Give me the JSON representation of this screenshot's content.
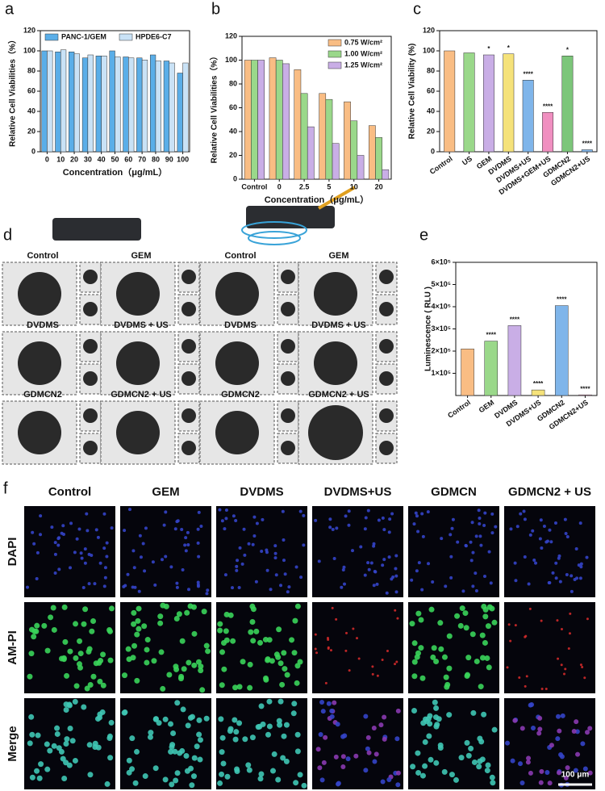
{
  "chart_data": [
    {
      "type": "bar",
      "label": "a",
      "ylabel": "Relative Cell Viabilities（%）",
      "xlabel": "Concentration（μg/mL）",
      "categories": [
        "0",
        "10",
        "20",
        "30",
        "40",
        "50",
        "60",
        "70",
        "80",
        "90",
        "100"
      ],
      "series": [
        {
          "name": "PANC-1/GEM",
          "color": "#5aaee8",
          "values": [
            100,
            99,
            99,
            93,
            95,
            100,
            94,
            93,
            96,
            90,
            78
          ]
        },
        {
          "name": "HPDE6-C7",
          "color": "#c9e2f6",
          "values": [
            100,
            101,
            97,
            96,
            95,
            94,
            93,
            91,
            90,
            88,
            88
          ]
        }
      ],
      "ylim": [
        0,
        120
      ],
      "yticks": [
        0,
        20,
        40,
        60,
        80,
        100,
        120
      ],
      "legend": "top"
    },
    {
      "type": "bar",
      "label": "b",
      "ylabel": "Relative Cell Viabilities（%）",
      "xlabel": "Concentration（μg/mL）",
      "categories": [
        "Control",
        "0",
        "2.5",
        "5",
        "10",
        "20"
      ],
      "series": [
        {
          "name": "0.75 W/cm²",
          "color": "#f9bd84",
          "values": [
            100,
            102,
            92,
            72,
            65,
            45
          ]
        },
        {
          "name": "1.00 W/cm²",
          "color": "#9ad88a",
          "values": [
            100,
            100,
            72,
            67,
            49,
            35
          ]
        },
        {
          "name": "1.25 W/cm²",
          "color": "#c9aee6",
          "values": [
            100,
            97,
            44,
            30,
            20,
            8
          ]
        }
      ],
      "ylim": [
        0,
        120
      ],
      "yticks": [
        0,
        20,
        40,
        60,
        80,
        100,
        120
      ],
      "legend": "upper right"
    },
    {
      "type": "bar",
      "label": "c",
      "ylabel": "Relative Cell Viability (%)",
      "categories": [
        "Control",
        "US",
        "GEM",
        "DVDMS",
        "DVDMS+US",
        "DVDMS+GEM+US",
        "GDMCN2",
        "GDMCN2+US"
      ],
      "values": [
        100,
        98,
        96,
        97,
        71,
        39,
        95,
        2
      ],
      "colors": [
        "#f9bd84",
        "#9ad88a",
        "#c9aee6",
        "#f5e27a",
        "#7fb5ea",
        "#f08fc0",
        "#7cc67a",
        "#7fb5ea"
      ],
      "annotations": [
        null,
        null,
        "*",
        "*",
        "****",
        "****",
        "*",
        "****"
      ],
      "ylim": [
        0,
        120
      ],
      "yticks": [
        0,
        20,
        40,
        60,
        80,
        100,
        120
      ]
    },
    {
      "type": "bar",
      "label": "e",
      "ylabel": "Luminescence ( RLU )",
      "categories": [
        "Control",
        "GEM",
        "DVDMS",
        "DVDMS+US",
        "GDMCN2",
        "GDMCN2+US"
      ],
      "values": [
        210000,
        245000,
        315000,
        25000,
        405000,
        3000
      ],
      "colors": [
        "#f9bd84",
        "#9ad88a",
        "#c9aee6",
        "#f5e27a",
        "#7fb5ea",
        "#f08fc0"
      ],
      "annotations": [
        null,
        "****",
        "****",
        "****",
        "****",
        "****"
      ],
      "ylim": [
        0,
        600000
      ],
      "yticks": [
        {
          "value": 100000,
          "label": "1×10⁵"
        },
        {
          "value": 200000,
          "label": "2×10⁵"
        },
        {
          "value": 300000,
          "label": "3×10⁵"
        },
        {
          "value": 400000,
          "label": "4×10⁵"
        },
        {
          "value": 500000,
          "label": "5×10⁵"
        },
        {
          "value": 600000,
          "label": "6×10⁵"
        }
      ]
    }
  ],
  "panels": {
    "d": {
      "label": "d",
      "labels": [
        "Control",
        "GEM",
        "Control",
        "GEM",
        "DVDMS",
        "DVDMS + US",
        "DVDMS",
        "DVDMS + US",
        "GDMCN2",
        "GDMCN2 + US",
        "GDMCN2",
        "GDMCN2 + US"
      ]
    },
    "f": {
      "label": "f",
      "columns": [
        "Control",
        "GEM",
        "DVDMS",
        "DVDMS+US",
        "GDMCN",
        "GDMCN2 + US"
      ],
      "rows": [
        "DAPI",
        "AM-PI",
        "Merge"
      ],
      "scale_bar": "100 μm"
    }
  }
}
